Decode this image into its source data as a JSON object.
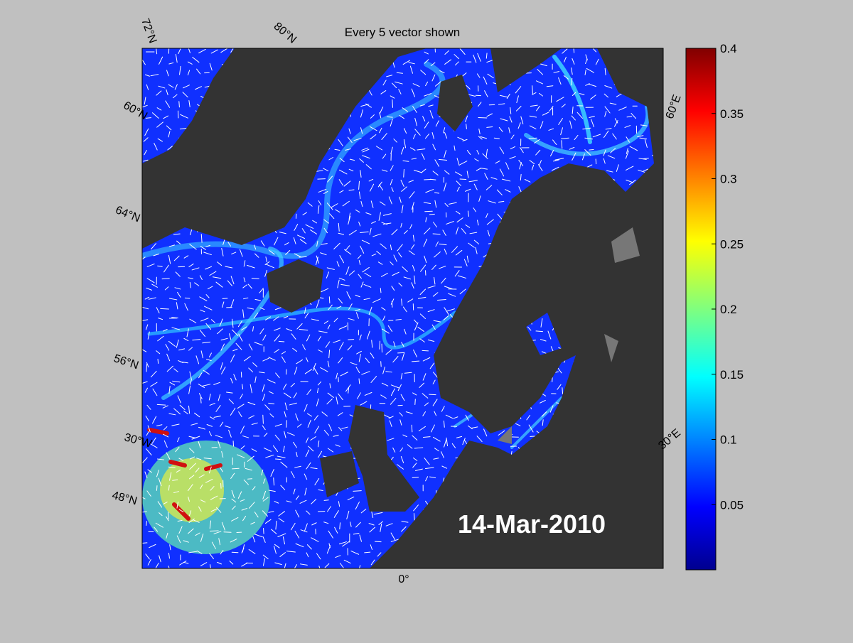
{
  "title": "Every 5 vector shown",
  "date_label": "14-Mar-2010",
  "graticule_labels": [
    "72°N",
    "80°N",
    "60°N",
    "64°N",
    "56°N",
    "30°W",
    "48°N",
    "0°",
    "30°E",
    "60°E"
  ],
  "colorbar": {
    "lim": [
      0,
      0.4
    ],
    "ticks": [
      0.05,
      0.1,
      0.15,
      0.2,
      0.25,
      0.3,
      0.35,
      0.4
    ]
  }
}
